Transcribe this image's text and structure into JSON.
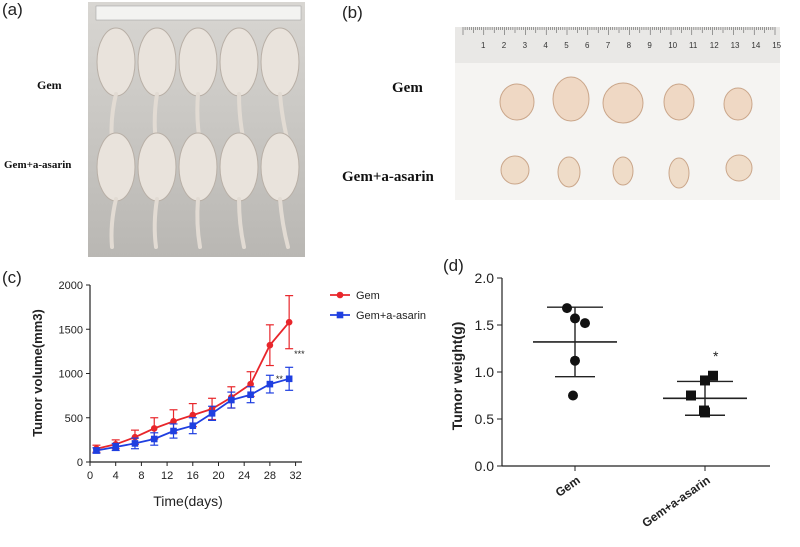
{
  "panels": {
    "a": {
      "label": "(a)",
      "group1": "Gem",
      "group2": "Gem+a-asarin"
    },
    "b": {
      "label": "(b)",
      "group1": "Gem",
      "group2": "Gem+a-asarin",
      "ruler_numbers": [
        "1",
        "2",
        "3",
        "4",
        "5",
        "6",
        "7",
        "8",
        "9",
        "10",
        "11",
        "12",
        "13",
        "14",
        "15"
      ]
    },
    "c": {
      "label": "(c)"
    },
    "d": {
      "label": "(d)"
    }
  },
  "colors": {
    "gem": "#e8262b",
    "combo": "#1f3fe0",
    "axis": "#222222"
  },
  "chart_data": [
    {
      "type": "line",
      "xlabel": "Time(days)",
      "ylabel": "Tumor volume(mm3)",
      "x": [
        1,
        4,
        7,
        10,
        13,
        16,
        19,
        22,
        25,
        28,
        31
      ],
      "xticks": [
        "0",
        "4",
        "8",
        "12",
        "16",
        "20",
        "24",
        "28",
        "32"
      ],
      "yticks": [
        "0",
        "500",
        "1000",
        "1500",
        "2000"
      ],
      "xlim": [
        0,
        33
      ],
      "ylim": [
        0,
        2000
      ],
      "series": [
        {
          "name": "Gem",
          "values": [
            150,
            200,
            280,
            380,
            460,
            530,
            600,
            730,
            880,
            1320,
            1580
          ],
          "errors": [
            40,
            50,
            80,
            120,
            130,
            130,
            120,
            120,
            140,
            230,
            300
          ]
        },
        {
          "name": "Gem+a-asarin",
          "values": [
            130,
            170,
            210,
            260,
            350,
            410,
            550,
            700,
            760,
            880,
            940
          ],
          "errors": [
            30,
            40,
            60,
            70,
            80,
            90,
            80,
            90,
            90,
            100,
            130
          ]
        }
      ],
      "annotations": [
        "**",
        "***"
      ],
      "legend": "top-right"
    },
    {
      "type": "scatter",
      "ylabel": "Tumor weight(g)",
      "categories": [
        "Gem",
        "Gem+a-asarin"
      ],
      "yticks": [
        "0.0",
        "0.5",
        "1.0",
        "1.5",
        "2.0"
      ],
      "ylim": [
        0,
        2.0
      ],
      "series": [
        {
          "name": "Gem",
          "points": [
            1.68,
            1.57,
            1.52,
            1.12,
            0.75
          ],
          "mean": 1.32,
          "sd_low": 0.95,
          "sd_high": 1.69
        },
        {
          "name": "Gem+a-asarin",
          "points": [
            0.96,
            0.91,
            0.75,
            0.59,
            0.57
          ],
          "mean": 0.72,
          "sd_low": 0.54,
          "sd_high": 0.9
        }
      ],
      "annotations": [
        "*"
      ]
    }
  ]
}
